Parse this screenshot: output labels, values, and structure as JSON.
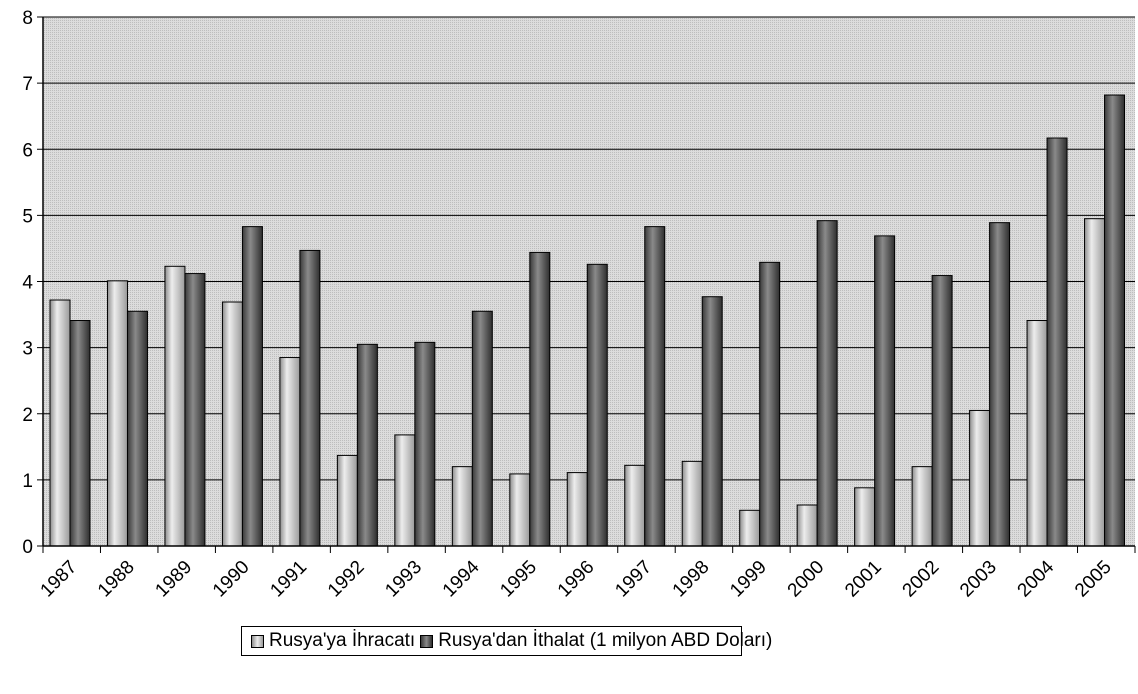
{
  "chart_data": {
    "type": "bar",
    "categories": [
      "1987",
      "1988",
      "1989",
      "1990",
      "1991",
      "1992",
      "1993",
      "1994",
      "1995",
      "1996",
      "1997",
      "1998",
      "1999",
      "2000",
      "2001",
      "2002",
      "2003",
      "2004",
      "2005"
    ],
    "series": [
      {
        "name": "Rusya'ya İhracatı",
        "color": "#b8b8b8",
        "values": [
          3.72,
          4.01,
          4.23,
          3.69,
          2.85,
          1.37,
          1.68,
          1.2,
          1.09,
          1.11,
          1.22,
          1.28,
          0.54,
          0.62,
          0.88,
          1.2,
          2.05,
          3.41,
          4.95
        ]
      },
      {
        "name": "Rusya'dan İthalat (1 milyon ABD Doları)",
        "color": "#555555",
        "values": [
          3.41,
          3.55,
          4.12,
          4.83,
          4.47,
          3.05,
          3.08,
          3.55,
          4.44,
          4.26,
          4.83,
          3.77,
          4.29,
          4.92,
          4.69,
          4.09,
          4.89,
          6.17,
          6.82
        ]
      }
    ],
    "ylim": [
      0,
      8
    ],
    "yticks": [
      "0",
      "1",
      "2",
      "3",
      "4",
      "5",
      "6",
      "7",
      "8"
    ],
    "grid": true,
    "legend_position": "bottom"
  }
}
